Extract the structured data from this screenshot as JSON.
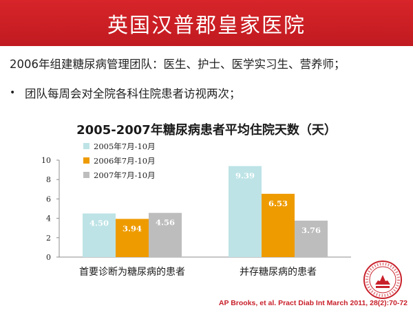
{
  "header": {
    "title": "英国汉普郡皇家医院"
  },
  "body": {
    "line1": "2006年组建糖尿病管理团队：医生、护士、医学实习生、营养师；",
    "bullet": "团队每周会对全院各科住院患者访视两次；"
  },
  "chart_data": {
    "type": "bar",
    "title": "2005-2007年糖尿病患者平均住院天数（天）",
    "categories": [
      "首要诊断为糖尿病的患者",
      "并存糖尿病的患者"
    ],
    "series": [
      {
        "name": "2005年7月-10月",
        "values": [
          4.5,
          9.39
        ],
        "color": "#bde3e6"
      },
      {
        "name": "2006年7月-10月",
        "values": [
          3.94,
          6.53
        ],
        "color": "#ee9b00"
      },
      {
        "name": "2007年7月-10月",
        "values": [
          4.56,
          3.76
        ],
        "color": "#bdbdbd"
      }
    ],
    "ylim": [
      0,
      10
    ],
    "yticks": [
      0,
      2,
      4,
      6,
      8,
      10
    ],
    "xlabel": "",
    "ylabel": "",
    "grid": false,
    "legend": "top-left"
  },
  "citation": "AP Brooks, et al. Pract Diab Int March 2011, 28(2):70-72",
  "colors": {
    "header": "#cc2027",
    "citation": "#c8202a"
  }
}
